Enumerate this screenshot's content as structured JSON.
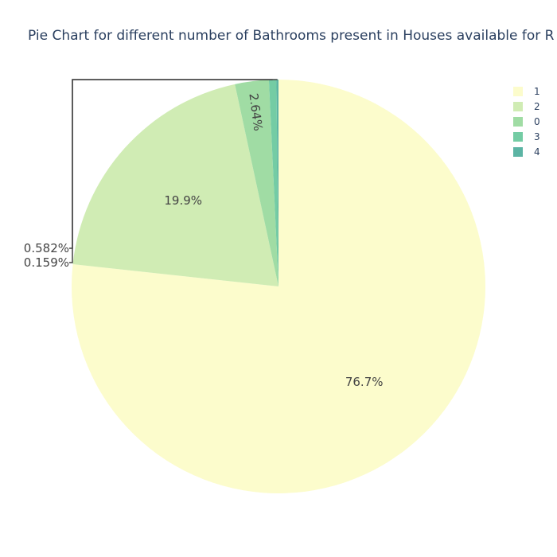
{
  "chart_data": {
    "type": "pie",
    "title": "Pie Chart for different number of Bathrooms present in Houses available for R",
    "slices": [
      {
        "label": "1",
        "value": 76.7,
        "text": "76.7%",
        "color": "#fcfccc"
      },
      {
        "label": "2",
        "value": 19.9,
        "text": "19.9%",
        "color": "#d0ecb4"
      },
      {
        "label": "0",
        "value": 2.64,
        "text": "2.64%",
        "color": "#a0dca4"
      },
      {
        "label": "3",
        "value": 0.582,
        "text": "0.582%",
        "color": "#74cca4"
      },
      {
        "label": "4",
        "value": 0.159,
        "text": "0.159%",
        "color": "#5cb4a4"
      }
    ],
    "direction": "clockwise",
    "start": "top",
    "legend_position": "top-right"
  }
}
